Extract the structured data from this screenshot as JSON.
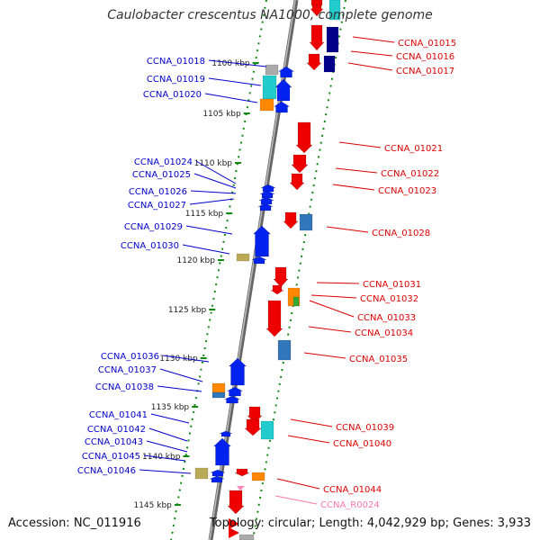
{
  "title": "Caulobacter crescentus NA1000, complete genome",
  "footer": {
    "accession": "Accession: NC_011916",
    "summary": "Topology: circular; Length: 4,042,929 bp; Genes: 3,933"
  },
  "colors": {
    "forward_label": "#0000cc",
    "reverse_label": "#dd0000",
    "rna_label": "#ff77aa",
    "backbone": "#888888",
    "tick": "#118811",
    "gene_red": "#ee0000",
    "gene_blue": "#0022ee",
    "gene_cyan": "#22cccc",
    "gene_orange": "#ff8800",
    "gene_steel": "#3377bb",
    "gene_khaki": "#bbaa55",
    "gene_navy": "#000088",
    "gene_gray": "#aaaaaa"
  },
  "scale_labels": [
    "1100 kbp",
    "1105 kbp",
    "1110 kbp",
    "1115 kbp",
    "1120 kbp",
    "1125 kbp",
    "1130 kbp",
    "1135 kbp",
    "1140 kbp",
    "1145 kbp"
  ],
  "genes_left": [
    "CCNA_01018",
    "CCNA_01019",
    "CCNA_01020",
    "CCNA_01024",
    "CCNA_01025",
    "CCNA_01026",
    "CCNA_01027",
    "CCNA_01029",
    "CCNA_01030",
    "CCNA_01036",
    "CCNA_01037",
    "CCNA_01038",
    "CCNA_01041",
    "CCNA_01042",
    "CCNA_01043",
    "CCNA_01045",
    "CCNA_01046"
  ],
  "genes_right": [
    "CCNA_01015",
    "CCNA_01016",
    "CCNA_01017",
    "CCNA_01021",
    "CCNA_01022",
    "CCNA_01023",
    "CCNA_01028",
    "CCNA_01031",
    "CCNA_01032",
    "CCNA_01033",
    "CCNA_01034",
    "CCNA_01035",
    "CCNA_01039",
    "CCNA_01040",
    "CCNA_01044",
    "CCNA_R0024"
  ]
}
